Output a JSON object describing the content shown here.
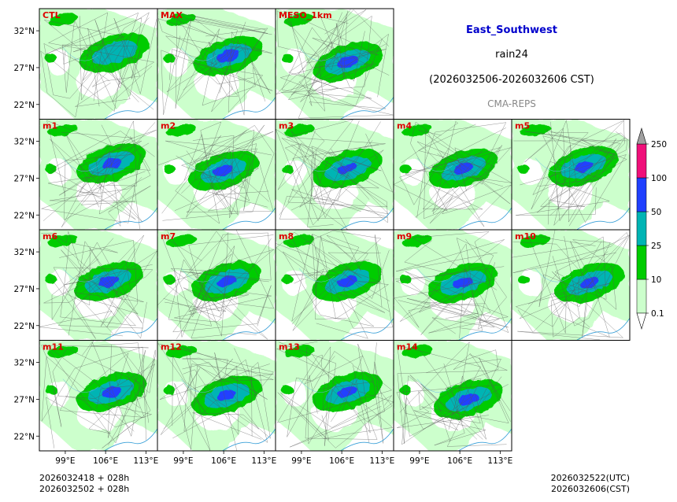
{
  "header": {
    "region": "East_Southwest",
    "variable": "rain24",
    "period": "(2026032506-2026032606 CST)",
    "model": "CMA-REPS"
  },
  "footer": {
    "left_line1": "2026032418  +  028h",
    "left_line2": "2026032502  +  028h",
    "right_line1": "2026032522(UTC)",
    "right_line2": "2026032606(CST)"
  },
  "colors": {
    "title": "#0000cc",
    "panel_label": "#dd0000",
    "model": "#888888",
    "levels": [
      "#ccffcc",
      "#00cc00",
      "#00b4b4",
      "#2040ff",
      "#f0107a",
      "#a0a0a0"
    ]
  },
  "chart_data": {
    "type": "heatmap",
    "description_units": "24h accumulated rainfall (mm)",
    "panels": [
      {
        "label": "CTL",
        "cx": 107.5,
        "cy": 29.0,
        "intensity": 2.4
      },
      {
        "label": "MAX",
        "cx": 106.8,
        "cy": 28.6,
        "intensity": 3.3
      },
      {
        "label": "MESO_1km",
        "cx": 107.0,
        "cy": 27.8,
        "intensity": 3.0
      },
      {
        "label": "m1",
        "cx": 107.0,
        "cy": 29.0,
        "intensity": 2.6
      },
      {
        "label": "m2",
        "cx": 106.0,
        "cy": 28.0,
        "intensity": 2.7
      },
      {
        "label": "m3",
        "cx": 107.0,
        "cy": 28.3,
        "intensity": 2.6
      },
      {
        "label": "m4",
        "cx": 106.6,
        "cy": 28.3,
        "intensity": 2.6
      },
      {
        "label": "m5",
        "cx": 107.0,
        "cy": 28.6,
        "intensity": 2.5
      },
      {
        "label": "m6",
        "cx": 106.5,
        "cy": 28.0,
        "intensity": 2.8
      },
      {
        "label": "m7",
        "cx": 106.5,
        "cy": 28.0,
        "intensity": 2.6
      },
      {
        "label": "m8",
        "cx": 107.0,
        "cy": 28.0,
        "intensity": 2.6
      },
      {
        "label": "m9",
        "cx": 106.5,
        "cy": 27.8,
        "intensity": 2.6
      },
      {
        "label": "m10",
        "cx": 108.0,
        "cy": 27.8,
        "intensity": 2.6
      },
      {
        "label": "m11",
        "cx": 107.0,
        "cy": 28.0,
        "intensity": 2.6
      },
      {
        "label": "m12",
        "cx": 106.5,
        "cy": 27.5,
        "intensity": 2.5
      },
      {
        "label": "m13",
        "cx": 107.0,
        "cy": 28.0,
        "intensity": 2.6
      },
      {
        "label": "m14",
        "cx": 107.5,
        "cy": 27.0,
        "intensity": 2.7
      }
    ],
    "x_ticks": [
      "99°E",
      "106°E",
      "113°E"
    ],
    "x_tick_values": [
      99,
      106,
      113
    ],
    "y_ticks": [
      "32°N",
      "27°N",
      "22°N"
    ],
    "y_tick_values": [
      32,
      27,
      22
    ],
    "xlim": [
      94.5,
      115
    ],
    "ylim": [
      20,
      35
    ],
    "colorbar": {
      "levels": [
        "0.1",
        "10",
        "25",
        "50",
        "100",
        "250"
      ],
      "extend": "both"
    }
  }
}
